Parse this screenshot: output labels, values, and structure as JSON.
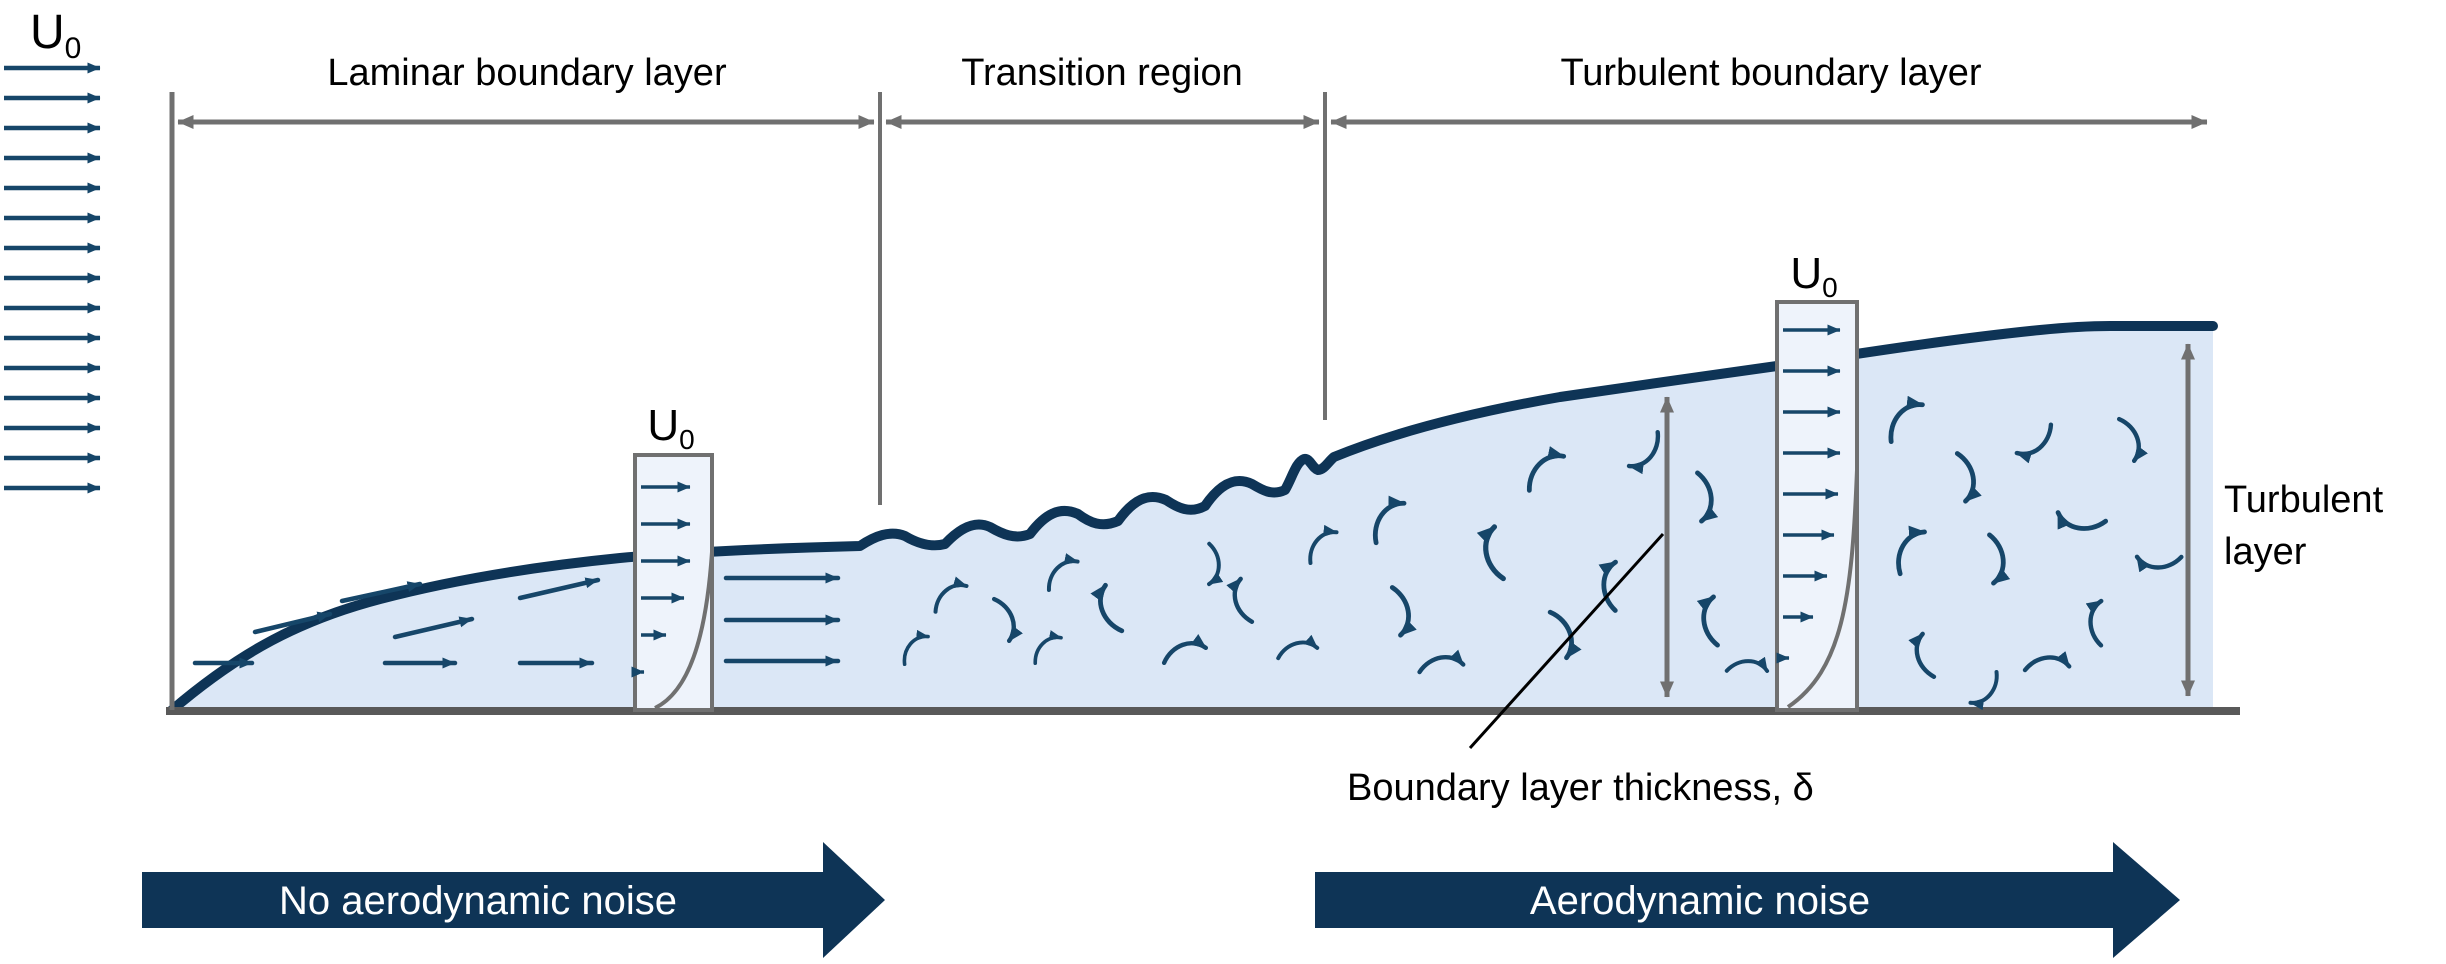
{
  "regions": {
    "laminar_label": "Laminar boundary layer",
    "transition_label": "Transition region",
    "turbulent_label": "Turbulent boundary layer"
  },
  "inflow": {
    "velocity_main": "U",
    "velocity_sub": "0"
  },
  "profiles": {
    "laminar": {
      "velocity_main": "U",
      "velocity_sub": "0"
    },
    "turbulent": {
      "velocity_main": "U",
      "velocity_sub": "0"
    }
  },
  "annotations": {
    "boundary_thickness": "Boundary layer thickness,  δ",
    "turbulent_layer_line1": "Turbulent",
    "turbulent_layer_line2": "layer"
  },
  "noise_arrows": {
    "left_label": "No aerodynamic noise",
    "right_label": "Aerodynamic noise"
  },
  "colors": {
    "navy": "#0e3456",
    "flow_arrow": "#164669",
    "boundary_fill": "#dbe7f6",
    "profile_box_fill": "#eef3fb",
    "measure_gray": "#707070",
    "ground_gray": "#595959",
    "text": "#000000",
    "noise_text": "#ffffff"
  }
}
